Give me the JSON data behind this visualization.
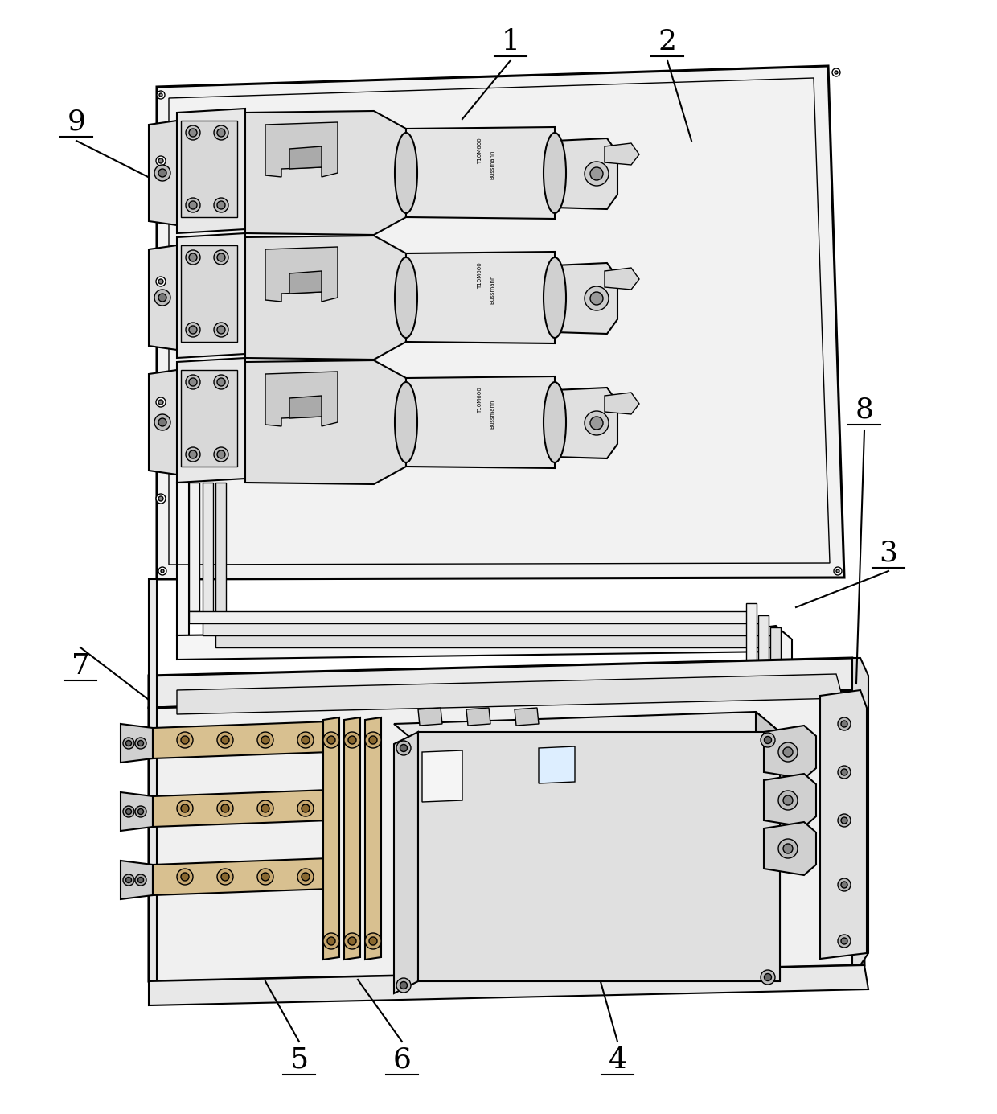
{
  "background_color": "#ffffff",
  "line_color": "#000000",
  "fig_width": 12.4,
  "fig_height": 13.85,
  "dpi": 100,
  "label_fontsize": 26,
  "labels_info": [
    [
      "1",
      635,
      52
    ],
    [
      "2",
      830,
      52
    ],
    [
      "3",
      1105,
      688
    ],
    [
      "4",
      768,
      1318
    ],
    [
      "5",
      372,
      1318
    ],
    [
      "6",
      500,
      1318
    ],
    [
      "7",
      100,
      828
    ],
    [
      "8",
      1075,
      510
    ],
    [
      "9",
      95,
      152
    ]
  ],
  "leader_lines": [
    [
      635,
      75,
      575,
      148
    ],
    [
      830,
      75,
      860,
      175
    ],
    [
      1105,
      710,
      990,
      755
    ],
    [
      768,
      1295,
      735,
      1178
    ],
    [
      372,
      1295,
      330,
      1220
    ],
    [
      500,
      1295,
      445,
      1218
    ],
    [
      100,
      805,
      185,
      870
    ],
    [
      1075,
      535,
      1065,
      850
    ],
    [
      95,
      175,
      200,
      228
    ]
  ]
}
